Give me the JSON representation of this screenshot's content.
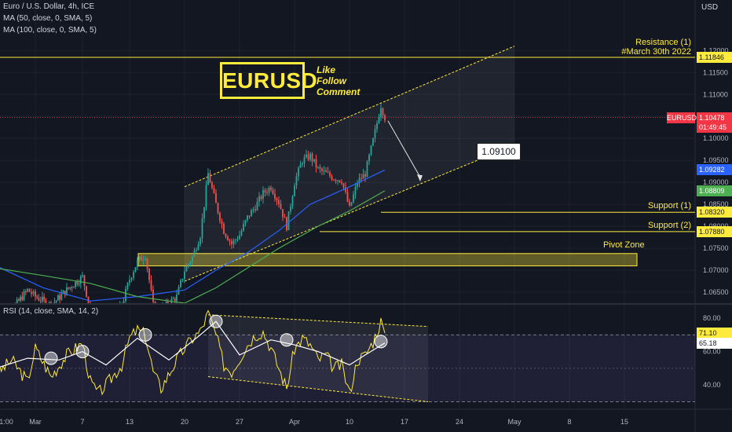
{
  "header": {
    "title": "Euro / U.S. Dollar, 4h, ICE",
    "indicators": [
      "MA (50, close, 0, SMA, 5)",
      "MA (100, close, 0, SMA, 5)"
    ],
    "currency": "USD",
    "rsi_label": "RSI (14, close, SMA, 14, 2)"
  },
  "overlay": {
    "logo_text": "EURUSD",
    "cta_lines": [
      "Like",
      "Follow",
      "Comment"
    ],
    "target_label": "1.09100"
  },
  "colors": {
    "background": "#131722",
    "up_candle": "#26a69a",
    "down_candle": "#ef5350",
    "annotation": "#ffeb3b",
    "ma50": "#2962ff",
    "ma100": "#4caf50",
    "rsi_line": "#ffeb3b",
    "rsi_signal": "#ffffff",
    "price_tag": "#f23645"
  },
  "chart_data": [
    {
      "type": "line",
      "name": "price",
      "y_ticks": [
        1.065,
        1.07,
        1.075,
        1.08,
        1.085,
        1.09,
        1.095,
        1.1,
        1.105,
        1.11,
        1.115,
        1.12
      ],
      "y_tick_labels": [
        "1.06500",
        "1.07000",
        "1.07500",
        "1.08000",
        "1.08500",
        "1.09000",
        "1.09500",
        "1.10000",
        "1.10500",
        "1.11000",
        "1.11500",
        "1.12000"
      ],
      "ylim": [
        1.0625,
        1.1265
      ],
      "x_tick_labels": [
        "1:00",
        "Mar",
        "7",
        "13",
        "20",
        "27",
        "Apr",
        "10",
        "17",
        "24",
        "May",
        "8",
        "15"
      ],
      "close_path": [
        [
          "2023-02-24",
          1.0575
        ],
        [
          "2023-02-26",
          1.061
        ],
        [
          "2023-02-28",
          1.0655
        ],
        [
          "2023-03-01",
          1.064
        ],
        [
          "2023-03-03",
          1.062
        ],
        [
          "2023-03-05",
          1.0655
        ],
        [
          "2023-03-07",
          1.0685
        ],
        [
          "2023-03-08",
          1.061
        ],
        [
          "2023-03-09",
          1.059
        ],
        [
          "2023-03-10",
          1.058
        ],
        [
          "2023-03-12",
          1.062
        ],
        [
          "2023-03-13",
          1.068
        ],
        [
          "2023-03-14",
          1.072
        ],
        [
          "2023-03-15",
          1.0735
        ],
        [
          "2023-03-16",
          1.062
        ],
        [
          "2023-03-17",
          1.061
        ],
        [
          "2023-03-19",
          1.064
        ],
        [
          "2023-03-20",
          1.07
        ],
        [
          "2023-03-21",
          1.073
        ],
        [
          "2023-03-22",
          1.078
        ],
        [
          "2023-03-23",
          1.092
        ],
        [
          "2023-03-24",
          1.085
        ],
        [
          "2023-03-25",
          1.079
        ],
        [
          "2023-03-26",
          1.076
        ],
        [
          "2023-03-27",
          1.078
        ],
        [
          "2023-03-28",
          1.082
        ],
        [
          "2023-03-29",
          1.0845
        ],
        [
          "2023-03-30",
          1.0875
        ],
        [
          "2023-03-31",
          1.089
        ],
        [
          "2023-04-01",
          1.0855
        ],
        [
          "2023-04-02",
          1.08
        ],
        [
          "2023-04-03",
          1.09
        ],
        [
          "2023-04-04",
          1.095
        ],
        [
          "2023-04-05",
          1.096
        ],
        [
          "2023-04-06",
          1.093
        ],
        [
          "2023-04-07",
          1.092
        ],
        [
          "2023-04-08",
          1.091
        ],
        [
          "2023-04-09",
          1.0905
        ],
        [
          "2023-04-10",
          1.084
        ],
        [
          "2023-04-11",
          1.09
        ],
        [
          "2023-04-12",
          1.092
        ],
        [
          "2023-04-13",
          1.0995
        ],
        [
          "2023-04-14",
          1.1075
        ],
        [
          "2023-04-14T12:00",
          1.10478
        ]
      ],
      "series": [
        {
          "name": "MA (50, close, 0, SMA, 5)",
          "values": [
            [
              "2023-02-24",
              1.071
            ],
            [
              "2023-03-02",
              1.066
            ],
            [
              "2023-03-08",
              1.063
            ],
            [
              "2023-03-14",
              1.064
            ],
            [
              "2023-03-20",
              1.0655
            ],
            [
              "2023-03-24",
              1.07
            ],
            [
              "2023-03-28",
              1.074
            ],
            [
              "2023-04-01",
              1.079
            ],
            [
              "2023-04-05",
              1.085
            ],
            [
              "2023-04-10",
              1.089
            ],
            [
              "2023-04-14T12:00",
              1.09282
            ]
          ]
        },
        {
          "name": "MA (100, close, 0, SMA, 5)",
          "values": [
            [
              "2023-02-24",
              1.0705
            ],
            [
              "2023-03-02",
              1.0688
            ],
            [
              "2023-03-08",
              1.067
            ],
            [
              "2023-03-14",
              1.064
            ],
            [
              "2023-03-20",
              1.0625
            ],
            [
              "2023-03-24",
              1.066
            ],
            [
              "2023-03-28",
              1.0705
            ],
            [
              "2023-04-01",
              1.075
            ],
            [
              "2023-04-06",
              1.08
            ],
            [
              "2023-04-10",
              1.0835
            ],
            [
              "2023-04-14T12:00",
              1.08809
            ]
          ]
        }
      ],
      "levels": [
        {
          "label": "Resistance (1)",
          "note": "#March 30th 2022",
          "value": 1.11846
        },
        {
          "label": "Support (1)",
          "value": 1.0832
        },
        {
          "label": "Support (2)",
          "value": 1.0788
        }
      ],
      "zone": {
        "label": "Pivot Zone",
        "y_range": [
          1.071,
          1.0738
        ]
      },
      "channel": {
        "upper": [
          [
            "2023-03-20",
            1.089
          ],
          [
            "2023-05-01",
            1.121
          ]
        ],
        "lower": [
          [
            "2023-03-20",
            1.0675
          ],
          [
            "2023-05-01",
            1.0985
          ]
        ]
      },
      "price_tags": [
        {
          "label": "EURUSD",
          "value": "1.10478",
          "countdown": "01:49:45"
        },
        {
          "value": "1.09282"
        },
        {
          "value": "1.08809"
        },
        {
          "value": "1.08320"
        },
        {
          "value": "1.07880"
        },
        {
          "value": "1.11846"
        }
      ]
    },
    {
      "type": "line",
      "name": "RSI (14, close, SMA, 14, 2)",
      "y_ticks": [
        40.0,
        60.0,
        80.0
      ],
      "y_tick_labels": [
        "40.00",
        "60.00",
        "80.00"
      ],
      "ylim": [
        26,
        88
      ],
      "bands": [
        70,
        30
      ],
      "rsi_path": [
        [
          "2023-02-24",
          46
        ],
        [
          "2023-02-26",
          55
        ],
        [
          "2023-02-28",
          42
        ],
        [
          "2023-03-01",
          62
        ],
        [
          "2023-03-03",
          45
        ],
        [
          "2023-03-05",
          58
        ],
        [
          "2023-03-07",
          65
        ],
        [
          "2023-03-08",
          42
        ],
        [
          "2023-03-09",
          35
        ],
        [
          "2023-03-10",
          40
        ],
        [
          "2023-03-12",
          52
        ],
        [
          "2023-03-13",
          68
        ],
        [
          "2023-03-14",
          73
        ],
        [
          "2023-03-15",
          70
        ],
        [
          "2023-03-16",
          48
        ],
        [
          "2023-03-17",
          38
        ],
        [
          "2023-03-19",
          55
        ],
        [
          "2023-03-20",
          62
        ],
        [
          "2023-03-21",
          68
        ],
        [
          "2023-03-22",
          72
        ],
        [
          "2023-03-23",
          83
        ],
        [
          "2023-03-24",
          70
        ],
        [
          "2023-03-25",
          52
        ],
        [
          "2023-03-26",
          48
        ],
        [
          "2023-03-27",
          56
        ],
        [
          "2023-03-28",
          64
        ],
        [
          "2023-03-29",
          70
        ],
        [
          "2023-03-30",
          72
        ],
        [
          "2023-03-31",
          62
        ],
        [
          "2023-04-01",
          50
        ],
        [
          "2023-04-02",
          38
        ],
        [
          "2023-04-03",
          62
        ],
        [
          "2023-04-04",
          68
        ],
        [
          "2023-04-05",
          64
        ],
        [
          "2023-04-06",
          55
        ],
        [
          "2023-04-07",
          58
        ],
        [
          "2023-04-08",
          50
        ],
        [
          "2023-04-09",
          52
        ],
        [
          "2023-04-10",
          35
        ],
        [
          "2023-04-11",
          55
        ],
        [
          "2023-04-12",
          58
        ],
        [
          "2023-04-13",
          66
        ],
        [
          "2023-04-14",
          78
        ],
        [
          "2023-04-14T12:00",
          71.1
        ]
      ],
      "series": [
        {
          "name": "RSI signal",
          "values": [
            [
              "2023-02-24",
              50
            ],
            [
              "2023-02-28",
              56
            ],
            [
              "2023-03-04",
              55
            ],
            [
              "2023-03-07",
              60
            ],
            [
              "2023-03-10",
              52
            ],
            [
              "2023-03-14",
              68
            ],
            [
              "2023-03-18",
              55
            ],
            [
              "2023-03-22",
              70
            ],
            [
              "2023-03-24",
              78
            ],
            [
              "2023-03-27",
              58
            ],
            [
              "2023-03-31",
              67
            ],
            [
              "2023-04-03",
              64
            ],
            [
              "2023-04-06",
              60
            ],
            [
              "2023-04-10",
              52
            ],
            [
              "2023-04-12",
              58
            ],
            [
              "2023-04-14T12:00",
              65.18
            ]
          ]
        }
      ],
      "channel": {
        "upper": [
          [
            "2023-03-23",
            82
          ],
          [
            "2023-04-20",
            75
          ]
        ],
        "lower": [
          [
            "2023-03-23",
            45
          ],
          [
            "2023-04-20",
            30
          ]
        ]
      },
      "price_tags": [
        {
          "value": "71.10"
        },
        {
          "value": "65.18"
        }
      ]
    }
  ]
}
